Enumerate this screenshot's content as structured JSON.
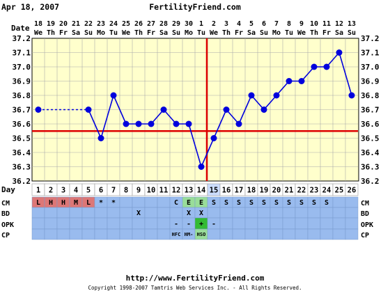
{
  "header": {
    "date": "Apr 18, 2007",
    "site": "FertilityFriend.com"
  },
  "footer": {
    "url": "http://www.FertilityFriend.com",
    "copyright": "Copyright 1998-2007 Tamtris Web Services Inc. - All Rights Reserved."
  },
  "labels": {
    "date": "Date",
    "day": "Day",
    "cm": "CM",
    "bd": "BD",
    "opk": "OPK",
    "cp": "CP"
  },
  "colors": {
    "plot_bg": "#ffffcc",
    "line": "#0000dd",
    "coverline": "#dd0000",
    "row_bg": "#99bbee",
    "menses": "#dd7777",
    "cm_green": "#99dd99",
    "opk_green": "#33bb33"
  },
  "chart_data": {
    "type": "line",
    "title": "",
    "xlabel": "Date",
    "ylabel": "",
    "ylim": [
      36.2,
      37.2
    ],
    "y_ticks": [
      "37.2",
      "37.1",
      "37.0",
      "36.9",
      "36.8",
      "36.7",
      "36.6",
      "36.5",
      "36.4",
      "36.3",
      "36.2"
    ],
    "dates": [
      "18",
      "19",
      "20",
      "21",
      "22",
      "23",
      "24",
      "25",
      "26",
      "27",
      "28",
      "29",
      "30",
      "1",
      "2",
      "3",
      "4",
      "5",
      "6",
      "7",
      "8",
      "9",
      "10",
      "11",
      "12",
      "13"
    ],
    "weekdays": [
      "We",
      "Th",
      "Fr",
      "Sa",
      "Su",
      "Mo",
      "Tu",
      "We",
      "Th",
      "Fr",
      "Sa",
      "Su",
      "Mo",
      "Tu",
      "We",
      "Th",
      "Fr",
      "Sa",
      "Su",
      "Mo",
      "Tu",
      "We",
      "Th",
      "Fr",
      "Sa",
      "Su"
    ],
    "days": [
      "1",
      "2",
      "3",
      "4",
      "5",
      "6",
      "7",
      "8",
      "9",
      "10",
      "11",
      "12",
      "13",
      "14",
      "15",
      "16",
      "17",
      "18",
      "19",
      "20",
      "21",
      "22",
      "23",
      "24",
      "25",
      "26"
    ],
    "series": [
      {
        "values": [
          36.7,
          null,
          null,
          null,
          36.7,
          36.5,
          36.8,
          36.6,
          36.6,
          36.6,
          36.7,
          36.6,
          36.6,
          36.3,
          36.5,
          36.7,
          36.6,
          36.8,
          36.7,
          36.8,
          36.9,
          36.9,
          37.0,
          37.0,
          37.1,
          36.8
        ]
      }
    ],
    "coverline": 36.55,
    "ovulation_day": 15,
    "cm": [
      "L",
      "H",
      "H",
      "M",
      "L",
      "*",
      "*",
      "",
      "",
      "",
      "",
      "C",
      "E",
      "E",
      "S",
      "S",
      "S",
      "S",
      "S",
      "S",
      "S",
      "S",
      "S",
      "S",
      "",
      ""
    ],
    "bd": [
      "",
      "",
      "",
      "",
      "",
      "",
      "",
      "",
      "X",
      "",
      "",
      "",
      "X",
      "X",
      "",
      "",
      "",
      "",
      "",
      "",
      "",
      "",
      "",
      "",
      "",
      ""
    ],
    "opk": [
      "",
      "",
      "",
      "",
      "",
      "",
      "",
      "",
      "",
      "",
      "",
      "-",
      "-",
      "+",
      "-",
      "",
      "",
      "",
      "",
      "",
      "",
      "",
      "",
      "",
      "",
      ""
    ],
    "cp": [
      "",
      "",
      "",
      "",
      "",
      "",
      "",
      "",
      "",
      "",
      "",
      "HFC",
      "HM-",
      "HSO",
      "",
      "",
      "",
      "",
      "",
      "",
      "",
      "",
      "",
      "",
      "",
      ""
    ]
  }
}
